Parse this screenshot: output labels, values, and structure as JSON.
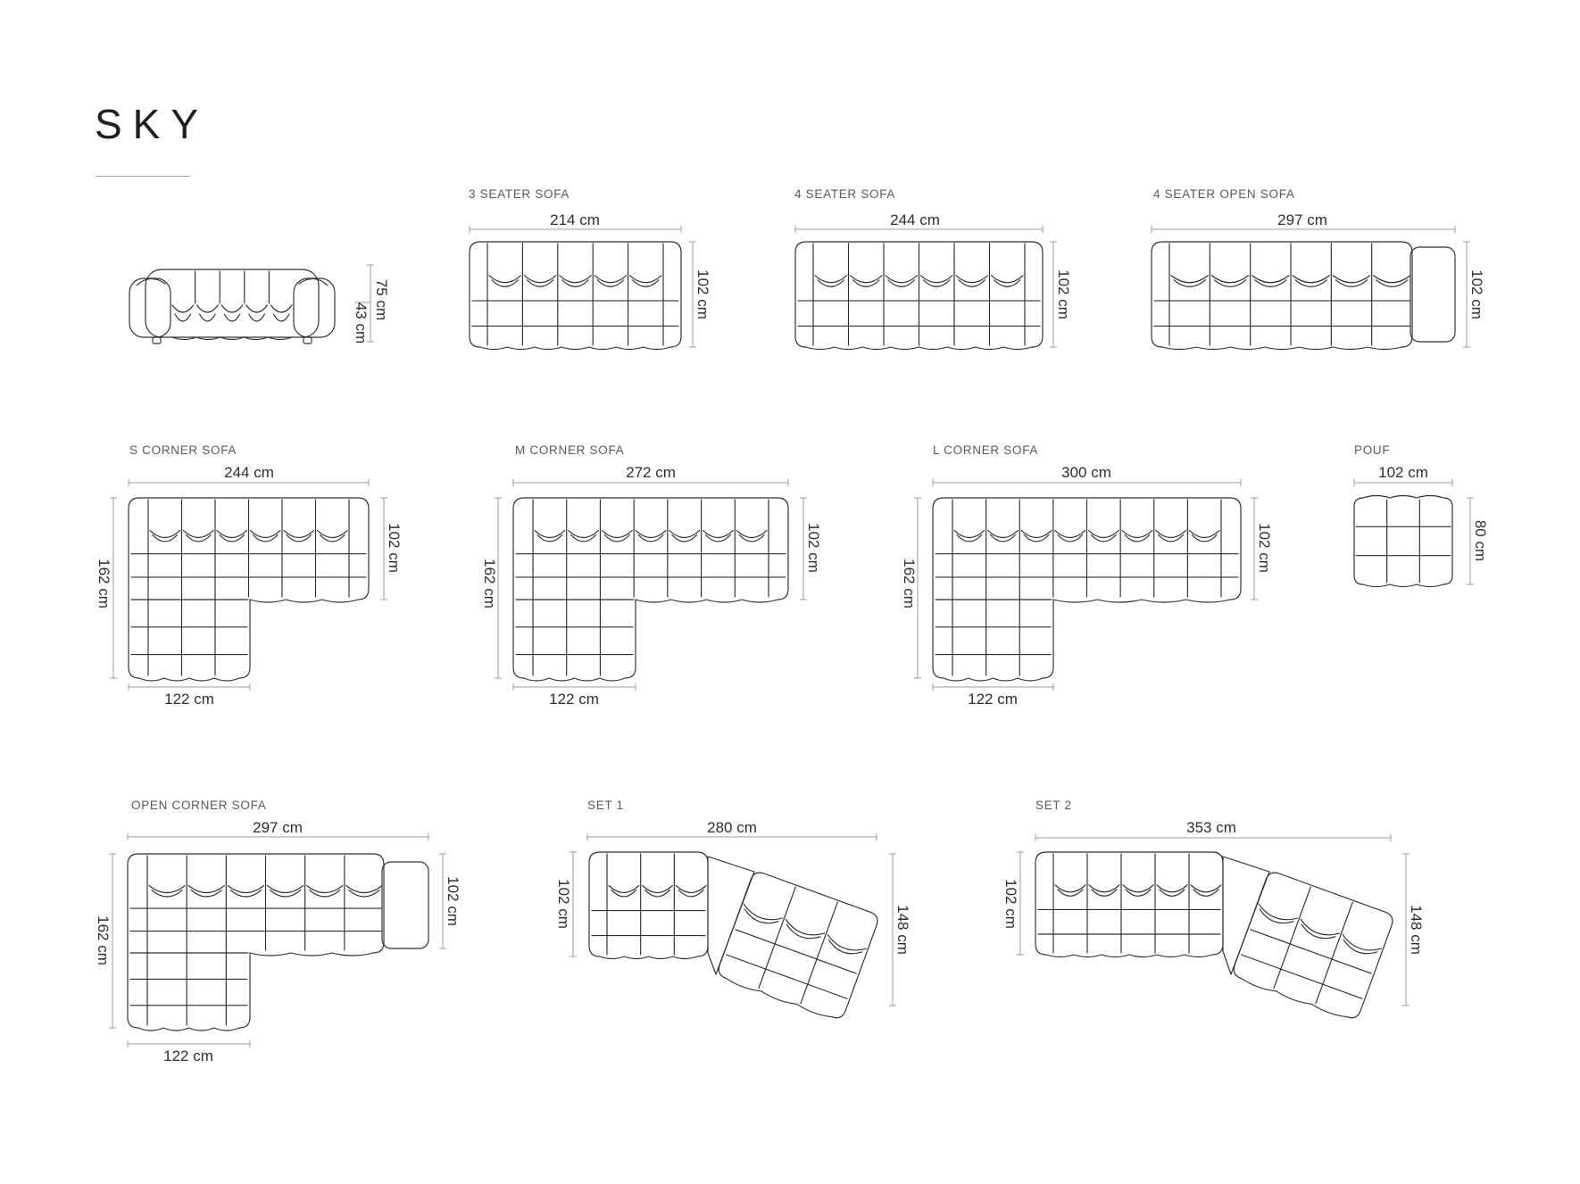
{
  "page": {
    "title": "SKY",
    "background": "#ffffff"
  },
  "colors": {
    "line": "#2e2e2e",
    "dim_line": "#9b9b9b",
    "label_text": "#595959",
    "dim_text": "#2e2e2e",
    "title_text": "#1f1f1f"
  },
  "figures": {
    "side_view": {
      "height_total": "75 cm",
      "height_seat": "43 cm"
    },
    "seater3": {
      "label": "3 SEATER SOFA",
      "width": "214 cm",
      "depth": "102 cm"
    },
    "seater4": {
      "label": "4 SEATER SOFA",
      "width": "244 cm",
      "depth": "102 cm"
    },
    "seater4open": {
      "label": "4 SEATER OPEN SOFA",
      "width": "297 cm",
      "depth": "102 cm"
    },
    "corner_s": {
      "label": "S CORNER SOFA",
      "width": "244 cm",
      "depth_total": "162 cm",
      "depth": "102 cm",
      "chaise_width": "122 cm"
    },
    "corner_m": {
      "label": "M CORNER SOFA",
      "width": "272 cm",
      "depth_total": "162 cm",
      "depth": "102 cm",
      "chaise_width": "122 cm"
    },
    "corner_l": {
      "label": "L CORNER SOFA",
      "width": "300 cm",
      "depth_total": "162 cm",
      "depth": "102 cm",
      "chaise_width": "122 cm"
    },
    "pouf": {
      "label": "POUF",
      "width": "102 cm",
      "depth": "80 cm"
    },
    "open_corner": {
      "label": "OPEN CORNER SOFA",
      "width": "297 cm",
      "depth_total": "162 cm",
      "depth": "102 cm",
      "chaise_width": "122 cm"
    },
    "set1": {
      "label": "SET 1",
      "width": "280 cm",
      "depth_left": "102 cm",
      "depth_right": "148 cm"
    },
    "set2": {
      "label": "SET 2",
      "width": "353 cm",
      "depth_left": "102 cm",
      "depth_right": "148 cm"
    }
  }
}
